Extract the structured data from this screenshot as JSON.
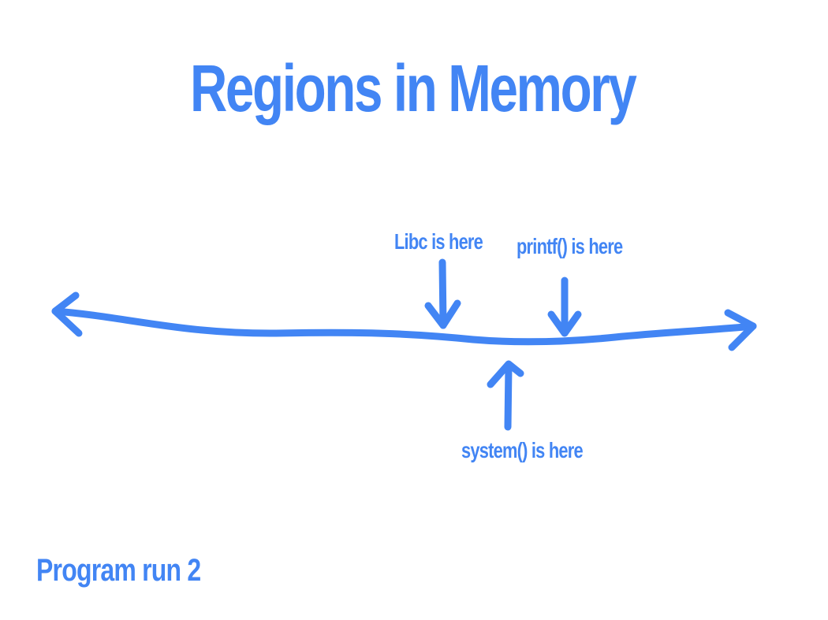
{
  "theme": {
    "accent": "#4285f4"
  },
  "slide": {
    "title": "Regions in Memory",
    "footer": "Program run 2"
  },
  "diagram": {
    "labels": {
      "libc": "Libc is here",
      "printf": "printf() is here",
      "system": "system() is here"
    }
  }
}
